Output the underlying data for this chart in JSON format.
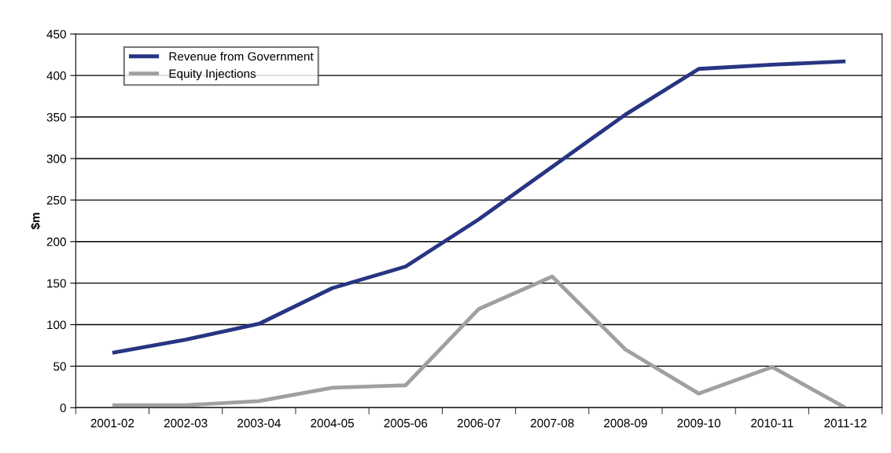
{
  "chart_data": {
    "type": "line",
    "ylabel": "$m",
    "categories": [
      "2001-02",
      "2002-03",
      "2003-04",
      "2004-05",
      "2005-06",
      "2006-07",
      "2007-08",
      "2008-09",
      "2009-10",
      "2010-11",
      "2011-12"
    ],
    "series": [
      {
        "name": "Revenue from Government",
        "color": "#283583",
        "values": [
          66,
          82,
          101,
          144,
          170,
          227,
          290,
          353,
          408,
          413,
          417
        ]
      },
      {
        "name": "Equity Injections",
        "color": "#a0a0a0",
        "values": [
          3,
          3,
          8,
          24,
          27,
          119,
          158,
          70,
          17,
          49,
          0
        ]
      }
    ],
    "ylim": [
      0,
      450
    ],
    "yticks": [
      0,
      50,
      100,
      150,
      200,
      250,
      300,
      350,
      400,
      450
    ],
    "grid": "y",
    "legend": "top left",
    "line_style": "solid",
    "marker": "none"
  }
}
